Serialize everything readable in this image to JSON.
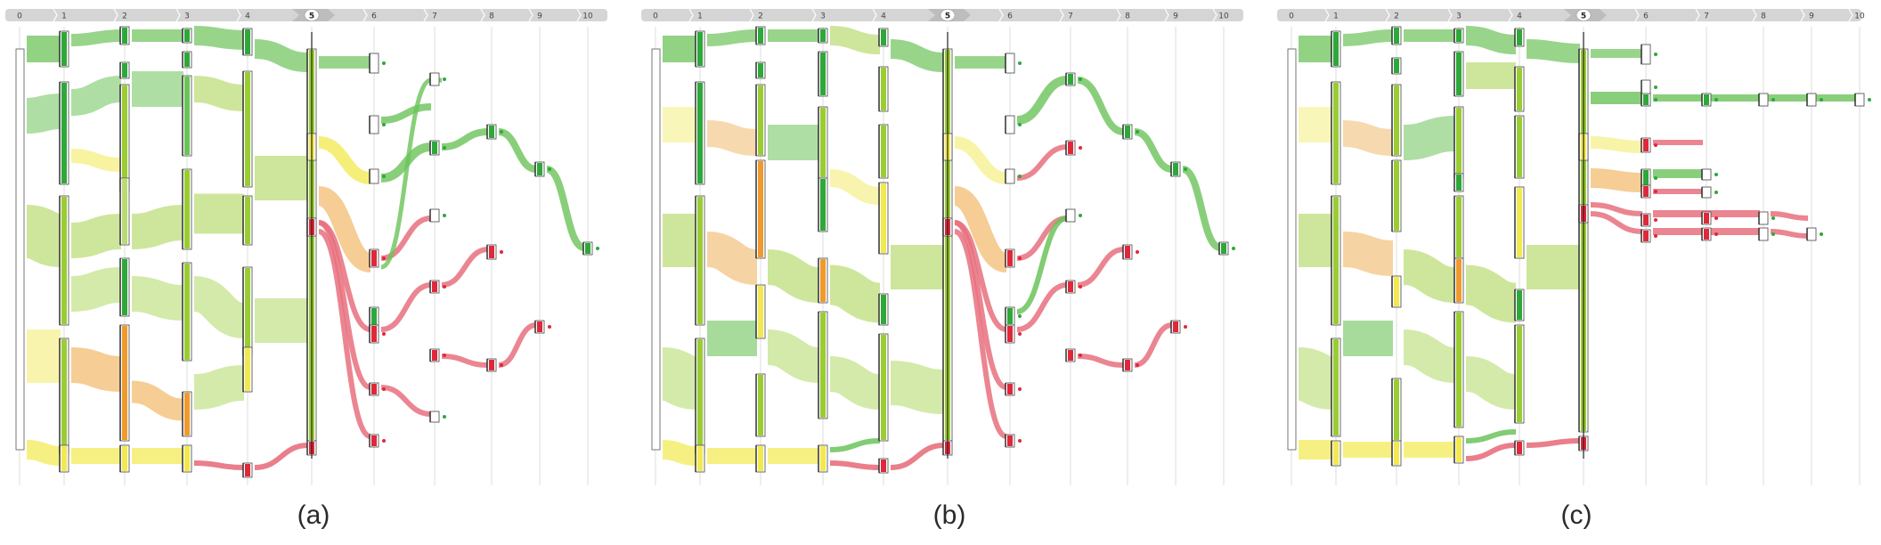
{
  "timeline_steps": [
    "0",
    "1",
    "2",
    "3",
    "4",
    "5",
    "6",
    "7",
    "8",
    "9",
    "10"
  ],
  "selected_step": "5",
  "panels": [
    {
      "id": "a",
      "caption": "(a)"
    },
    {
      "id": "b",
      "caption": "(b)"
    },
    {
      "id": "c",
      "caption": "(c)"
    }
  ],
  "colors": {
    "dark_green": "#2ea83a",
    "green": "#6cc35a",
    "lime": "#9acd32",
    "light_green": "#b8dc72",
    "yellow": "#f2e94e",
    "light_yellow": "#f5f08a",
    "orange": "#ef9a2d",
    "light_orange": "#f2c07a",
    "red": "#e0283a",
    "pink": "#e8707e",
    "gridline": "#dddddd",
    "timeline_bar": "#d5d5d5",
    "timeline_selected": "#ffffff"
  }
}
